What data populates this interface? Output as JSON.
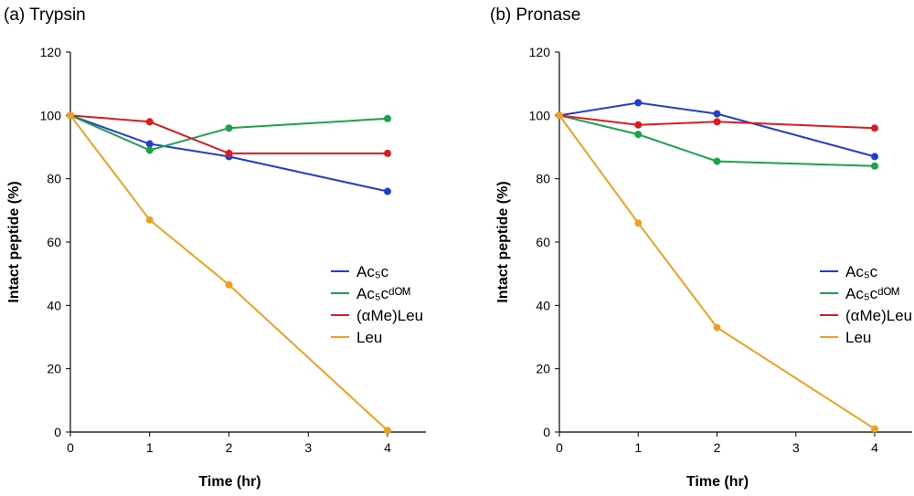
{
  "chart_data": [
    {
      "type": "line",
      "title": "(a) Trypsin",
      "xlabel": "Time (hr)",
      "ylabel": "Intact peptide (%)",
      "x": [
        0,
        1,
        2,
        4
      ],
      "xticks": [
        0,
        1,
        2,
        3,
        4
      ],
      "yticks": [
        0,
        20,
        40,
        60,
        80,
        100,
        120
      ],
      "xlim": [
        0,
        4.5
      ],
      "ylim": [
        0,
        120
      ],
      "grid": false,
      "legend": "right",
      "series": [
        {
          "name": "Ac₅c",
          "color": "#1f3fd0",
          "values": [
            100,
            91,
            87,
            76
          ]
        },
        {
          "name": "Ac₅cᵈᴼᴹ",
          "color": "#1aa34a",
          "values": [
            100,
            89,
            96,
            99
          ]
        },
        {
          "name": "(αMe)Leu",
          "color": "#e01b1b",
          "values": [
            100,
            98,
            88,
            88
          ]
        },
        {
          "name": "Leu",
          "color": "#f0a020",
          "values": [
            100,
            67,
            46.5,
            0.5
          ]
        }
      ]
    },
    {
      "type": "line",
      "title": "(b) Pronase",
      "xlabel": "Time (hr)",
      "ylabel": "Intact peptide (%)",
      "x": [
        0,
        1,
        2,
        4
      ],
      "xticks": [
        0,
        1,
        2,
        3,
        4
      ],
      "yticks": [
        0,
        20,
        40,
        60,
        80,
        100,
        120
      ],
      "xlim": [
        0,
        4.5
      ],
      "ylim": [
        0,
        120
      ],
      "grid": false,
      "legend": "right",
      "series": [
        {
          "name": "Ac₅c",
          "color": "#1f3fd0",
          "values": [
            100,
            104,
            100.5,
            87
          ]
        },
        {
          "name": "Ac₅cᵈᴼᴹ",
          "color": "#1aa34a",
          "values": [
            100,
            94,
            85.5,
            84
          ]
        },
        {
          "name": "(αMe)Leu",
          "color": "#e01b1b",
          "values": [
            100,
            97,
            98,
            96
          ]
        },
        {
          "name": "Leu",
          "color": "#f0a020",
          "values": [
            100,
            66,
            33,
            1
          ]
        }
      ]
    }
  ]
}
